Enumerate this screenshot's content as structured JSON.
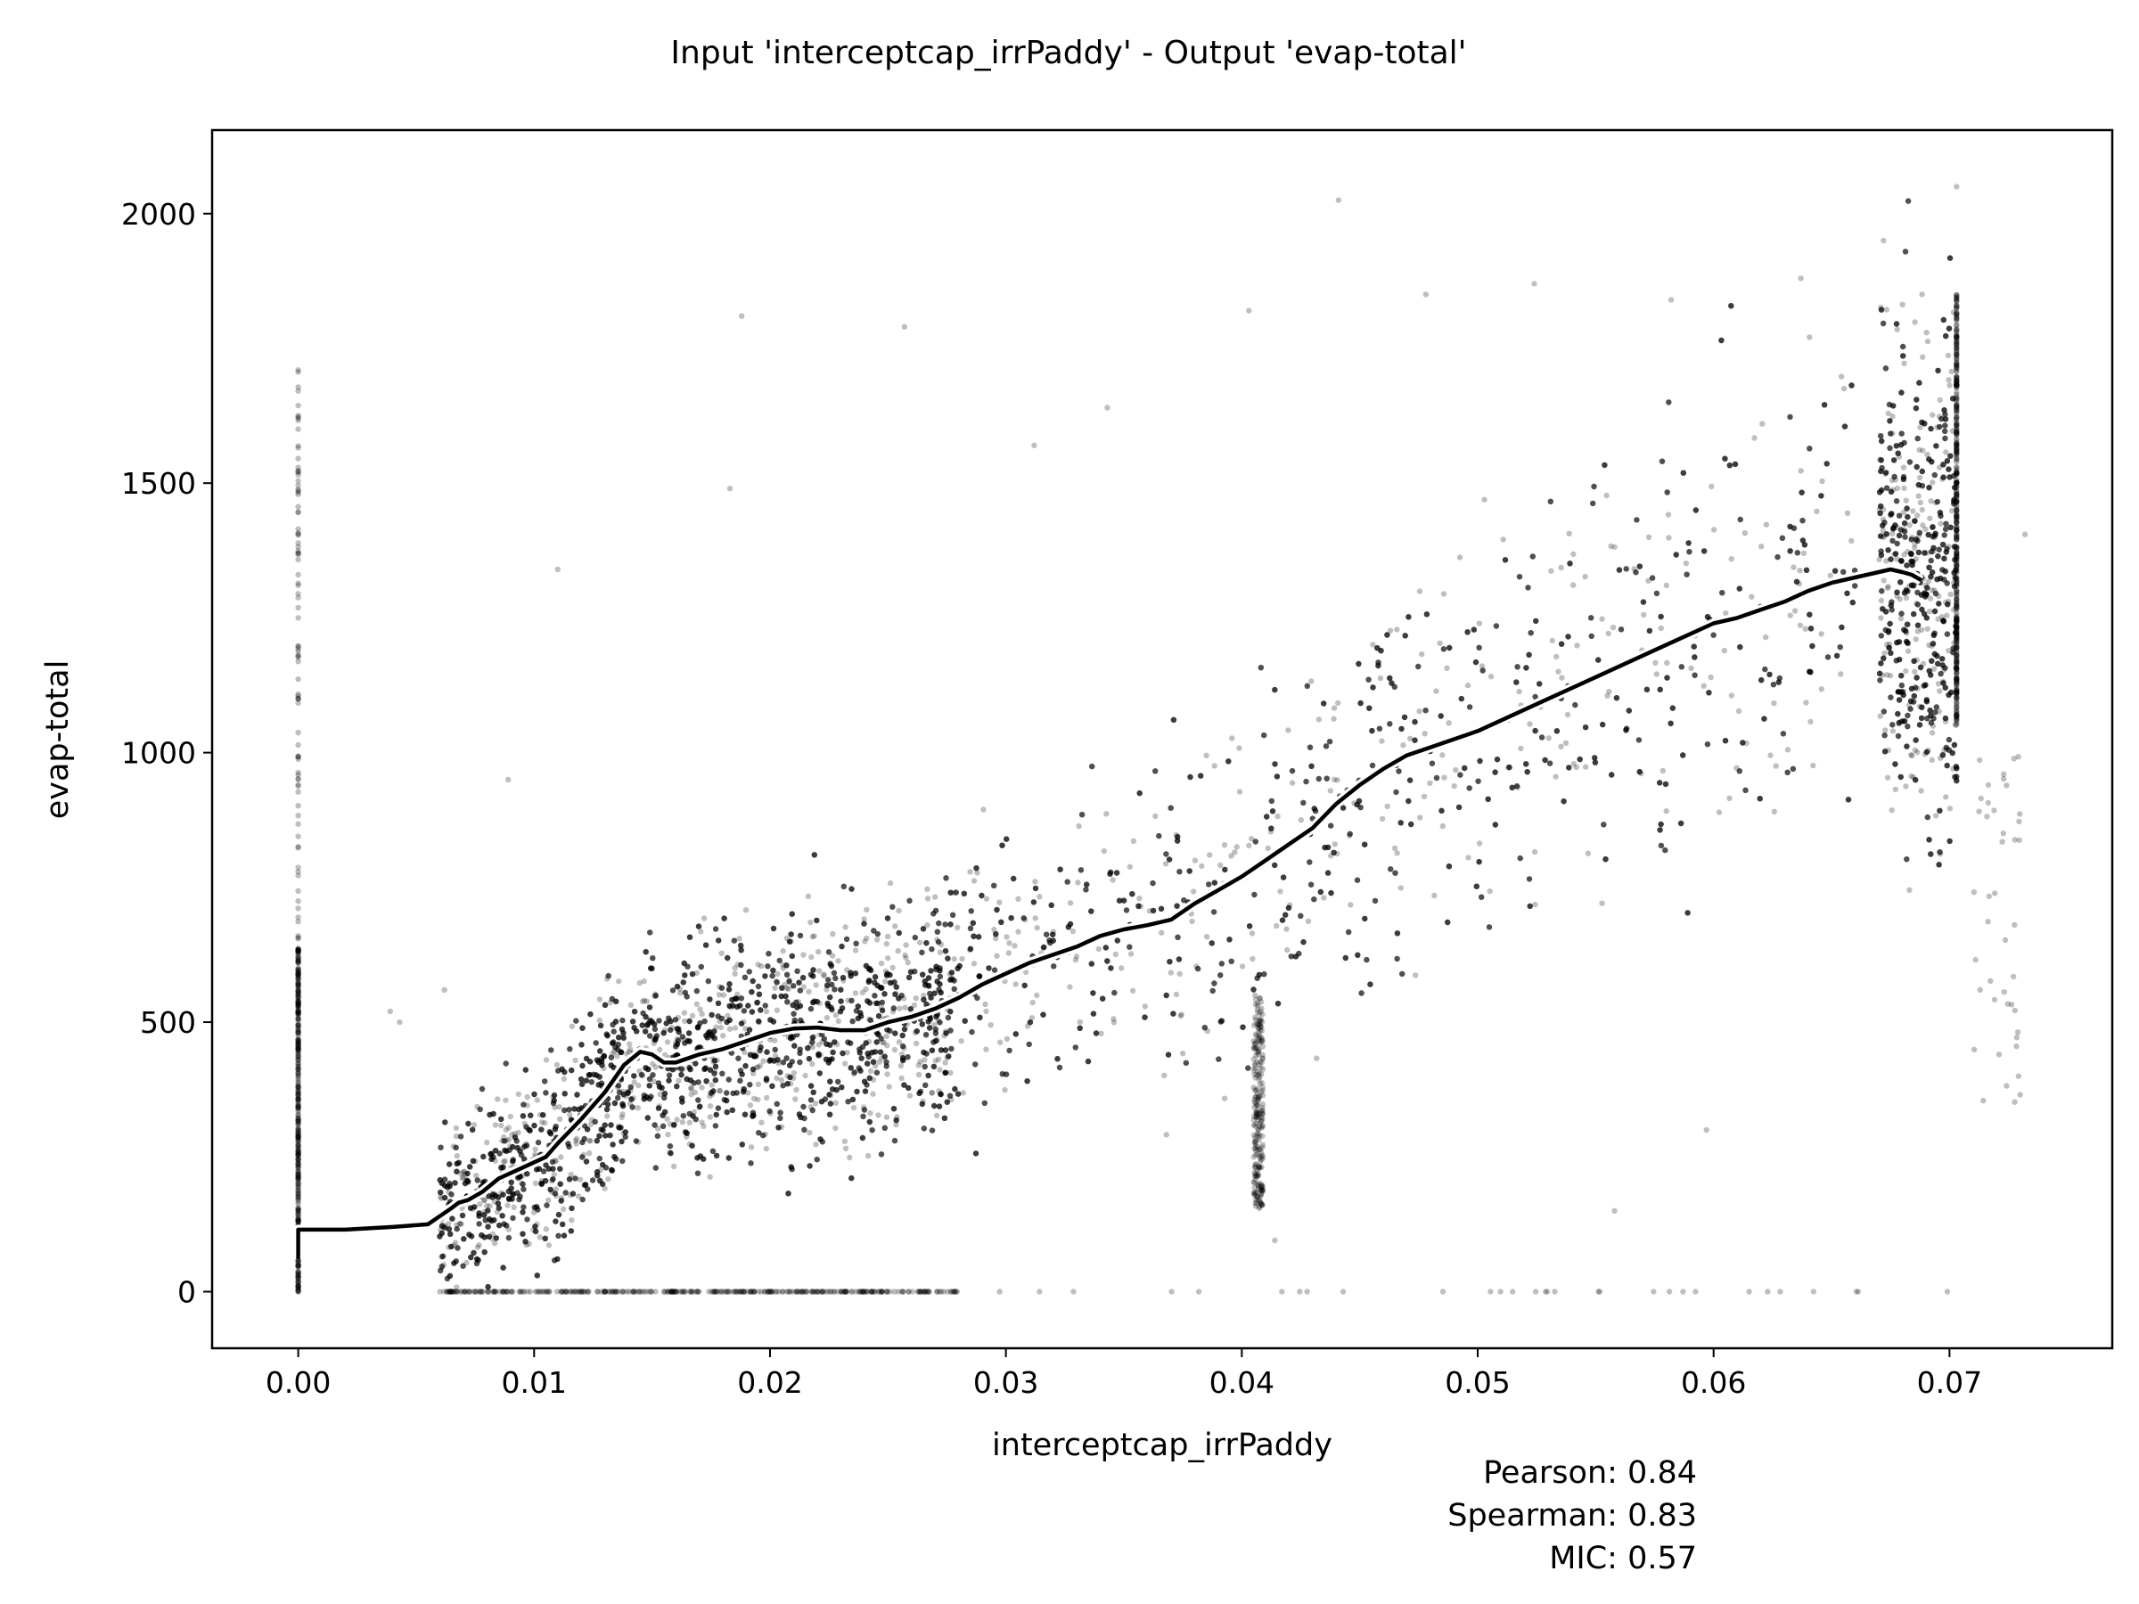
{
  "chart_data": {
    "type": "scatter",
    "title": "Input 'interceptcap_irrPaddy' - Output 'evap-total'",
    "xlabel": "interceptcap_irrPaddy",
    "ylabel": "evap-total",
    "xlim": [
      -0.00365,
      0.0769
    ],
    "ylim": [
      -105,
      2155
    ],
    "x_ticks": [
      0.0,
      0.01,
      0.02,
      0.03,
      0.04,
      0.05,
      0.06,
      0.07
    ],
    "x_tick_labels": [
      "0.00",
      "0.01",
      "0.02",
      "0.03",
      "0.04",
      "0.05",
      "0.06",
      "0.07"
    ],
    "y_ticks": [
      0,
      500,
      1000,
      1500,
      2000
    ],
    "y_tick_labels": [
      "0",
      "500",
      "1000",
      "1500",
      "2000"
    ],
    "grid": false,
    "series": [
      {
        "kind": "scatter",
        "color": "#000000",
        "opacity": 0.25,
        "description_of_density": [
          {
            "x": [
              0.0,
              0.0
            ],
            "y": [
              0,
              1710
            ],
            "dense_y": [
              0,
              640
            ]
          },
          {
            "x": [
              0.006,
              0.014
            ],
            "y": [
              0,
              1150
            ],
            "dense_y": [
              100,
              600
            ]
          },
          {
            "x": [
              0.014,
              0.041
            ],
            "y": [
              0,
              1400
            ],
            "dense_y": [
              150,
              800
            ]
          },
          {
            "x": [
              0.041,
              0.066
            ],
            "y": [
              0,
              1950
            ],
            "dense_y": [
              400,
              1500
            ]
          },
          {
            "x": [
              0.068,
              0.0703
            ],
            "y": [
              0,
              2050
            ],
            "dense_y": [
              1050,
              1800
            ]
          },
          {
            "x": [
              0.071,
              0.073
            ],
            "y": [
              350,
              1000
            ],
            "dense_y": [
              400,
              1000
            ]
          }
        ],
        "sample_points": [
          [
            0.0,
            1710
          ],
          [
            0.0,
            1520
          ],
          [
            0.0,
            1330
          ],
          [
            0.0,
            1250
          ],
          [
            0.0,
            1100
          ],
          [
            0.011,
            1340
          ],
          [
            0.0188,
            1810
          ],
          [
            0.0257,
            1790
          ],
          [
            0.0312,
            1570
          ],
          [
            0.0343,
            1640
          ],
          [
            0.0403,
            1820
          ],
          [
            0.0441,
            2025
          ],
          [
            0.0478,
            1850
          ],
          [
            0.0524,
            1870
          ],
          [
            0.0582,
            1840
          ],
          [
            0.0637,
            1880
          ],
          [
            0.0672,
            1950
          ],
          [
            0.0703,
            2050
          ],
          [
            0.0732,
            1405
          ],
          [
            0.0723,
            960
          ],
          [
            0.0713,
            560
          ],
          [
            0.0721,
            440
          ],
          [
            0.0597,
            300
          ],
          [
            0.0558,
            150
          ],
          [
            0.0414,
            95
          ],
          [
            0.0043,
            500
          ],
          [
            0.0039,
            520
          ],
          [
            0.0062,
            560
          ],
          [
            0.0089,
            950
          ],
          [
            0.0183,
            1490
          ]
        ]
      },
      {
        "kind": "line",
        "name": "",
        "color": "#000000",
        "outline_color": "#ffffff",
        "x": [
          0.0,
          0.0,
          0.0,
          0.002,
          0.004,
          0.0055,
          0.006,
          0.0065,
          0.0068,
          0.0072,
          0.0078,
          0.0085,
          0.0095,
          0.0105,
          0.011,
          0.012,
          0.013,
          0.0138,
          0.0145,
          0.015,
          0.0155,
          0.016,
          0.017,
          0.018,
          0.019,
          0.02,
          0.021,
          0.022,
          0.023,
          0.024,
          0.025,
          0.026,
          0.027,
          0.028,
          0.029,
          0.03,
          0.031,
          0.032,
          0.033,
          0.034,
          0.035,
          0.036,
          0.037,
          0.038,
          0.039,
          0.04,
          0.041,
          0.042,
          0.043,
          0.044,
          0.045,
          0.046,
          0.047,
          0.048,
          0.049,
          0.05,
          0.051,
          0.052,
          0.053,
          0.054,
          0.055,
          0.056,
          0.057,
          0.058,
          0.059,
          0.06,
          0.061,
          0.062,
          0.063,
          0.064,
          0.065,
          0.066,
          0.067,
          0.0675,
          0.068,
          0.0684,
          0.0688
        ],
        "y": [
          60,
          115,
          115,
          115,
          120,
          125,
          140,
          155,
          165,
          170,
          185,
          210,
          230,
          250,
          275,
          320,
          370,
          420,
          445,
          440,
          425,
          425,
          440,
          450,
          465,
          480,
          488,
          490,
          485,
          485,
          500,
          510,
          525,
          545,
          570,
          590,
          610,
          625,
          640,
          660,
          672,
          680,
          690,
          720,
          745,
          770,
          800,
          830,
          860,
          905,
          940,
          970,
          995,
          1010,
          1025,
          1040,
          1060,
          1080,
          1100,
          1120,
          1140,
          1160,
          1180,
          1200,
          1220,
          1240,
          1250,
          1265,
          1280,
          1300,
          1315,
          1325,
          1335,
          1340,
          1335,
          1330,
          1320
        ]
      }
    ],
    "annotations": [
      "Pearson: 0.84",
      "Spearman: 0.83",
      "MIC: 0.57"
    ]
  }
}
